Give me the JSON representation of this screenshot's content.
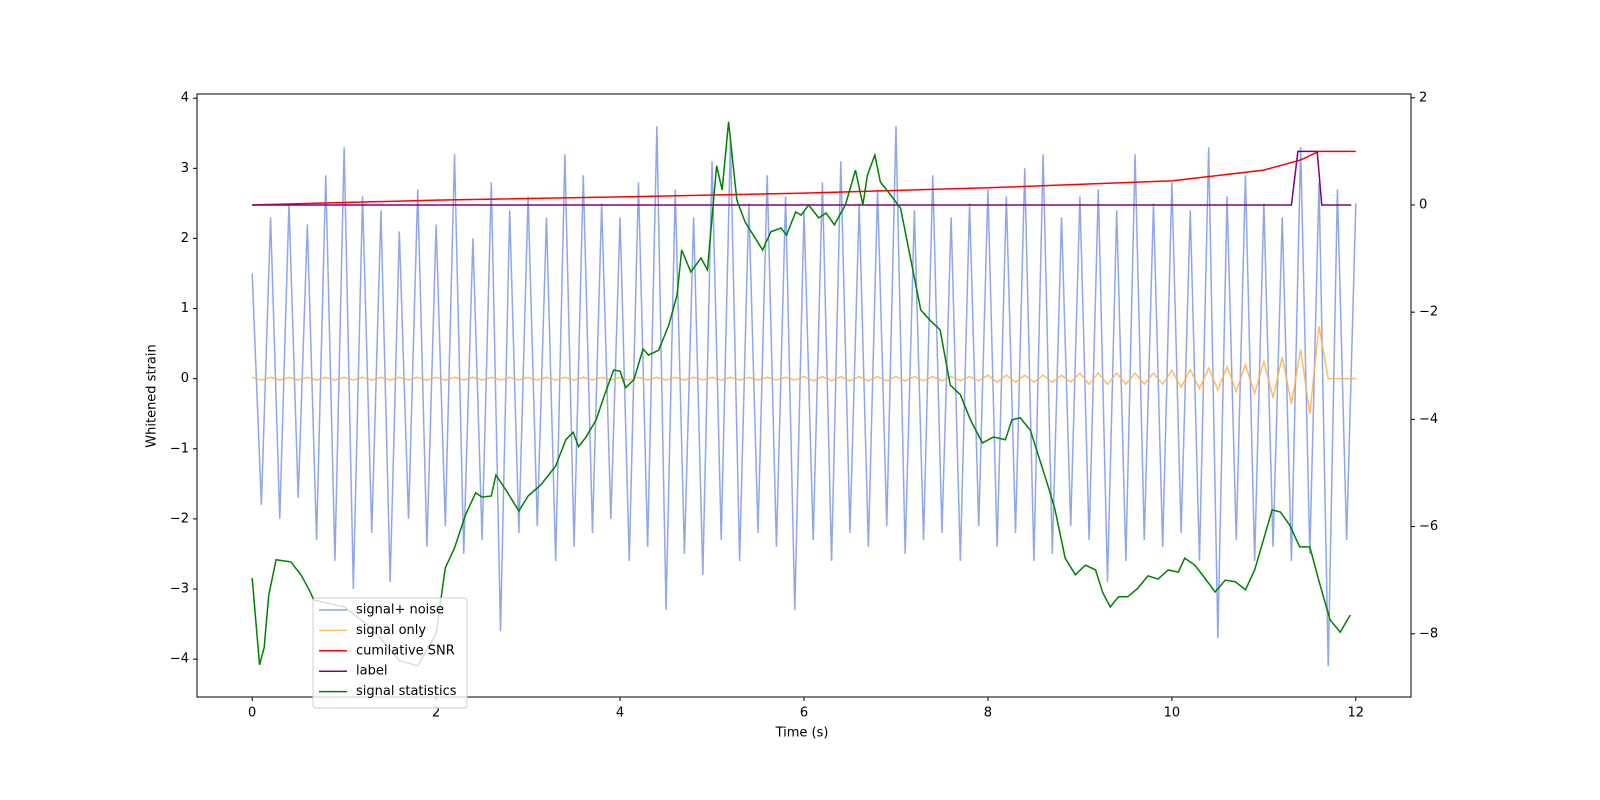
{
  "chart_data": {
    "type": "line",
    "xlabel": "Time (s)",
    "ylabel": "Whitened strain",
    "xlim": [
      -0.6,
      12.6
    ],
    "ylim": [
      -4.54,
      4.06
    ],
    "y2lim": [
      -9.18,
      2.07
    ],
    "xticks": [
      0,
      2,
      4,
      6,
      8,
      10,
      12
    ],
    "yticks": [
      {
        "value": -4,
        "label": "−4"
      },
      {
        "value": -3,
        "label": "−3"
      },
      {
        "value": -2,
        "label": "−2"
      },
      {
        "value": -1,
        "label": "−1"
      },
      0,
      1,
      2,
      3,
      4
    ],
    "y2ticks": [
      {
        "value": -8,
        "label": "−8"
      },
      {
        "value": -6,
        "label": "−6"
      },
      {
        "value": -4,
        "label": "−4"
      },
      {
        "value": -2,
        "label": "−2"
      },
      0,
      2
    ],
    "x": [
      0,
      0.1,
      0.2,
      0.3,
      0.4,
      0.5,
      0.6,
      0.7,
      0.8,
      0.9,
      1,
      1.1,
      1.2,
      1.3,
      1.4,
      1.5,
      1.6,
      1.7,
      1.8,
      1.9,
      2,
      2.1,
      2.2,
      2.3,
      2.4,
      2.5,
      2.6,
      2.7,
      2.8,
      2.9,
      3,
      3.1,
      3.2,
      3.3,
      3.4,
      3.5,
      3.6,
      3.7,
      3.8,
      3.9,
      4,
      4.1,
      4.2,
      4.3,
      4.4,
      4.5,
      4.6,
      4.7,
      4.8,
      4.9,
      5,
      5.1,
      5.2,
      5.3,
      5.4,
      5.5,
      5.6,
      5.7,
      5.8,
      5.9,
      6,
      6.1,
      6.2,
      6.3,
      6.4,
      6.5,
      6.6,
      6.7,
      6.8,
      6.9,
      7,
      7.1,
      7.2,
      7.3,
      7.4,
      7.5,
      7.6,
      7.7,
      7.8,
      7.9,
      8,
      8.1,
      8.2,
      8.3,
      8.4,
      8.5,
      8.6,
      8.7,
      8.8,
      8.9,
      9,
      9.1,
      9.2,
      9.3,
      9.4,
      9.5,
      9.6,
      9.7,
      9.8,
      9.9,
      10,
      10.1,
      10.2,
      10.3,
      10.4,
      10.5,
      10.6,
      10.7,
      10.8,
      10.9,
      11,
      11.1,
      11.2,
      11.3,
      11.4,
      11.5,
      11.6,
      11.7,
      11.8,
      11.9,
      12
    ],
    "series": [
      {
        "name": "signal+ noise",
        "color": "#7b96e8",
        "values": [
          1.5,
          -1.8,
          2.3,
          -2.0,
          2.5,
          -1.7,
          2.2,
          -2.3,
          2.9,
          -2.6,
          3.3,
          -3.0,
          2.6,
          -2.2,
          2.4,
          -2.9,
          2.1,
          -2.0,
          2.7,
          -2.4,
          2.2,
          -2.1,
          3.2,
          -2.5,
          2.0,
          -2.3,
          2.8,
          -3.6,
          2.4,
          -2.2,
          2.6,
          -2.1,
          2.3,
          -2.6,
          3.2,
          -2.4,
          2.9,
          -2.2,
          2.5,
          -2.0,
          2.3,
          -2.6,
          2.8,
          -2.4,
          3.6,
          -3.3,
          2.7,
          -2.5,
          2.3,
          -2.8,
          3.1,
          -2.3,
          3.4,
          -2.6,
          2.5,
          -2.2,
          2.9,
          -2.4,
          2.6,
          -3.3,
          2.4,
          -2.3,
          2.8,
          -2.6,
          3.1,
          -2.2,
          2.5,
          -2.4,
          2.7,
          -2.1,
          3.6,
          -2.5,
          2.4,
          -2.3,
          2.9,
          -2.2,
          2.3,
          -2.6,
          2.5,
          -2.1,
          2.7,
          -2.4,
          2.6,
          -2.2,
          3.0,
          -2.6,
          3.2,
          -2.5,
          2.3,
          -2.1,
          2.6,
          -2.3,
          2.7,
          -2.9,
          2.4,
          -2.6,
          3.2,
          -2.3,
          2.5,
          -2.4,
          2.8,
          -2.2,
          2.4,
          -2.6,
          3.3,
          -3.7,
          2.6,
          -2.3,
          2.9,
          -2.6,
          2.5,
          -2.4,
          2.3,
          -2.6,
          3.3,
          -2.5,
          2.8,
          -4.1,
          2.7,
          -2.3,
          2.5
        ]
      },
      {
        "name": "signal only",
        "color": "#ffb04a",
        "values": [
          0.02,
          -0.02,
          0.02,
          -0.02,
          0.02,
          -0.02,
          0.02,
          -0.02,
          0.02,
          -0.02,
          0.02,
          -0.02,
          0.02,
          -0.02,
          0.02,
          -0.02,
          0.02,
          -0.02,
          0.02,
          -0.02,
          0.02,
          -0.02,
          0.02,
          -0.02,
          0.02,
          -0.02,
          0.02,
          -0.02,
          0.02,
          -0.02,
          0.02,
          -0.02,
          0.02,
          -0.02,
          0.02,
          -0.02,
          0.02,
          -0.02,
          0.02,
          -0.02,
          0.02,
          -0.02,
          0.02,
          -0.02,
          0.02,
          -0.02,
          0.02,
          -0.02,
          0.02,
          -0.02,
          0.02,
          -0.02,
          0.02,
          -0.02,
          0.02,
          -0.02,
          0.02,
          -0.02,
          0.02,
          -0.02,
          0.03,
          -0.03,
          0.03,
          -0.03,
          0.03,
          -0.03,
          0.03,
          -0.03,
          0.03,
          -0.03,
          0.03,
          -0.03,
          0.03,
          -0.03,
          0.03,
          -0.03,
          0.03,
          -0.03,
          0.03,
          -0.03,
          0.05,
          -0.05,
          0.05,
          -0.05,
          0.05,
          -0.05,
          0.05,
          -0.05,
          0.05,
          -0.05,
          0.08,
          -0.08,
          0.08,
          -0.08,
          0.08,
          -0.08,
          0.08,
          -0.08,
          0.08,
          -0.08,
          0.12,
          -0.12,
          0.13,
          -0.14,
          0.15,
          -0.16,
          0.17,
          -0.18,
          0.2,
          -0.21,
          0.24,
          -0.27,
          0.31,
          -0.36,
          0.42,
          -0.5,
          0.75,
          0,
          0,
          0,
          0
        ]
      },
      {
        "name": "cumilative SNR",
        "color": "#ff0000",
        "axis": "y2",
        "x": [
          0,
          2,
          4,
          6,
          8,
          10,
          11,
          11.4,
          11.6,
          12
        ],
        "values": [
          0,
          0.09,
          0.15,
          0.22,
          0.32,
          0.45,
          0.65,
          0.84,
          1.0,
          1.0
        ]
      },
      {
        "name": "label",
        "color": "#800080",
        "axis": "y2",
        "x": [
          0,
          11.3,
          11.37,
          11.58,
          11.63,
          11.95
        ],
        "values": [
          0,
          0,
          1,
          1,
          0,
          0
        ]
      },
      {
        "name": "signal statistics",
        "color": "#008000",
        "axis": "y2",
        "x": [
          0,
          0.08,
          0.13,
          0.18,
          0.26,
          0.42,
          0.53,
          0.62,
          0.67,
          1.0,
          1.3,
          1.6,
          1.8,
          2.0,
          2.1,
          2.2,
          2.32,
          2.43,
          2.5,
          2.6,
          2.65,
          2.76,
          2.9,
          3.0,
          3.14,
          3.3,
          3.41,
          3.49,
          3.55,
          3.63,
          3.74,
          3.82,
          3.93,
          4.0,
          4.06,
          4.15,
          4.25,
          4.31,
          4.42,
          4.53,
          4.62,
          4.67,
          4.77,
          4.88,
          4.95,
          5.05,
          5.11,
          5.18,
          5.27,
          5.36,
          5.47,
          5.55,
          5.64,
          5.75,
          5.81,
          5.91,
          5.97,
          6.05,
          6.16,
          6.24,
          6.33,
          6.45,
          6.56,
          6.64,
          6.69,
          6.77,
          6.83,
          6.94,
          7.05,
          7.14,
          7.27,
          7.37,
          7.48,
          7.59,
          7.7,
          7.81,
          7.94,
          8.06,
          8.19,
          8.26,
          8.35,
          8.46,
          8.57,
          8.66,
          8.73,
          8.84,
          8.95,
          9.06,
          9.17,
          9.25,
          9.33,
          9.42,
          9.52,
          9.63,
          9.74,
          9.85,
          9.96,
          10.07,
          10.14,
          10.25,
          10.34,
          10.47,
          10.58,
          10.69,
          10.8,
          10.9,
          10.98,
          11.09,
          11.18,
          11.28,
          11.39,
          11.5,
          11.59,
          11.72,
          11.83,
          11.94
        ],
        "values": [
          -6.96,
          -8.58,
          -8.26,
          -7.28,
          -6.62,
          -6.66,
          -6.9,
          -7.18,
          -7.37,
          -7.5,
          -7.9,
          -8.5,
          -8.6,
          -8.0,
          -6.77,
          -6.4,
          -5.78,
          -5.37,
          -5.45,
          -5.43,
          -5.04,
          -5.32,
          -5.71,
          -5.43,
          -5.22,
          -4.87,
          -4.38,
          -4.24,
          -4.51,
          -4.33,
          -4.01,
          -3.6,
          -3.08,
          -3.1,
          -3.41,
          -3.26,
          -2.69,
          -2.8,
          -2.71,
          -2.24,
          -1.68,
          -0.84,
          -1.25,
          -0.99,
          -1.21,
          0.73,
          0.28,
          1.55,
          0.09,
          -0.32,
          -0.62,
          -0.84,
          -0.5,
          -0.43,
          -0.56,
          -0.13,
          -0.19,
          0,
          -0.24,
          -0.15,
          -0.37,
          0,
          0.65,
          0,
          0.56,
          0.93,
          0.43,
          0.19,
          -0.06,
          -0.84,
          -1.96,
          -2.15,
          -2.33,
          -3.36,
          -3.54,
          -4.01,
          -4.44,
          -4.33,
          -4.38,
          -4.01,
          -3.97,
          -4.2,
          -4.79,
          -5.28,
          -5.69,
          -6.59,
          -6.9,
          -6.72,
          -6.81,
          -7.24,
          -7.5,
          -7.31,
          -7.31,
          -7.15,
          -6.92,
          -6.98,
          -6.81,
          -6.85,
          -6.59,
          -6.72,
          -6.92,
          -7.22,
          -7.0,
          -7.03,
          -7.18,
          -6.81,
          -6.34,
          -5.69,
          -5.73,
          -5.97,
          -6.38,
          -6.38,
          -6.96,
          -7.74,
          -7.97,
          -7.65
        ]
      }
    ]
  }
}
